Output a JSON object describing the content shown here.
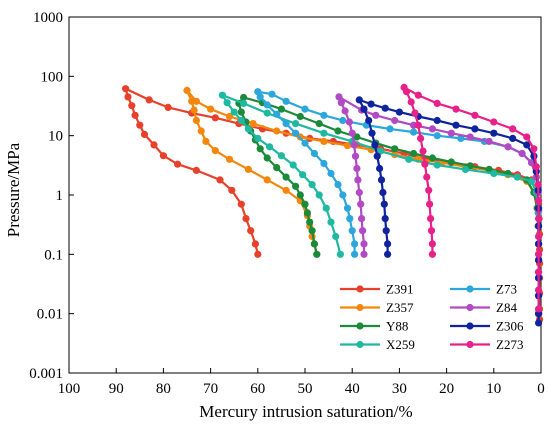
{
  "chart_data": {
    "type": "line",
    "xlabel": "Mercury intrusion saturation/%",
    "ylabel": "Pressure/MPa",
    "x_reversed": true,
    "xlim": [
      100,
      0
    ],
    "ylim": [
      0.001,
      1000
    ],
    "y_scale": "log",
    "x_ticks": [
      "100",
      "90",
      "80",
      "70",
      "60",
      "50",
      "40",
      "30",
      "20",
      "10",
      "0"
    ],
    "y_ticks": [
      "0.001",
      "0.01",
      "0.1",
      "1",
      "10",
      "100",
      "1000"
    ],
    "grid": false,
    "legend_position": "bottom-right",
    "series": [
      {
        "name": "Z391",
        "color": "#e8412b",
        "points": [
          [
            60,
            0.1
          ],
          [
            60.5,
            0.15
          ],
          [
            61.5,
            0.25
          ],
          [
            62.5,
            0.4
          ],
          [
            63.5,
            0.7
          ],
          [
            65.5,
            1.2
          ],
          [
            68,
            1.8
          ],
          [
            73,
            2.6
          ],
          [
            77,
            3.3
          ],
          [
            80,
            4.6
          ],
          [
            82,
            7
          ],
          [
            84,
            10.5
          ],
          [
            85,
            15
          ],
          [
            86,
            22
          ],
          [
            86.7,
            32
          ],
          [
            87.5,
            45
          ],
          [
            88,
            62
          ],
          [
            83,
            40
          ],
          [
            79,
            30
          ],
          [
            74,
            24
          ],
          [
            69,
            20
          ],
          [
            64,
            16
          ],
          [
            59,
            13
          ],
          [
            54,
            11
          ],
          [
            49,
            9
          ],
          [
            44,
            8
          ],
          [
            39,
            7
          ],
          [
            34,
            6
          ],
          [
            29,
            5
          ],
          [
            24,
            4
          ],
          [
            19,
            3.5
          ],
          [
            14,
            3
          ],
          [
            9,
            2.6
          ],
          [
            5,
            2.2
          ],
          [
            2,
            1.8
          ],
          [
            1,
            1.1
          ],
          [
            0.5,
            0.7
          ],
          [
            0.4,
            0.4
          ],
          [
            0.3,
            0.22
          ],
          [
            0.3,
            0.12
          ],
          [
            0.3,
            0.07
          ],
          [
            0.3,
            0.04
          ],
          [
            0.3,
            0.022
          ],
          [
            0.3,
            0.012
          ],
          [
            0.3,
            0.008
          ]
        ]
      },
      {
        "name": "Z357",
        "color": "#f4870b",
        "points": [
          [
            47.5,
            0.1
          ],
          [
            48,
            0.15
          ],
          [
            48.5,
            0.2
          ],
          [
            49,
            0.3
          ],
          [
            49.5,
            0.45
          ],
          [
            51,
            0.8
          ],
          [
            54,
            1.2
          ],
          [
            58,
            1.8
          ],
          [
            62,
            2.7
          ],
          [
            66,
            4
          ],
          [
            69,
            5.6
          ],
          [
            71,
            8
          ],
          [
            72,
            12
          ],
          [
            73,
            18
          ],
          [
            73.5,
            27
          ],
          [
            74,
            38
          ],
          [
            75,
            58
          ],
          [
            73,
            38
          ],
          [
            70,
            28
          ],
          [
            66,
            21
          ],
          [
            61,
            16
          ],
          [
            56,
            12
          ],
          [
            51,
            9.5
          ],
          [
            46,
            8
          ],
          [
            41,
            6.8
          ],
          [
            36,
            5.8
          ],
          [
            31,
            4.8
          ],
          [
            26,
            4
          ],
          [
            21,
            3.5
          ],
          [
            16,
            3
          ],
          [
            11,
            2.6
          ],
          [
            7,
            2.2
          ],
          [
            3,
            1.7
          ],
          [
            1.5,
            1.1
          ],
          [
            0.8,
            0.6
          ],
          [
            0.6,
            0.3
          ],
          [
            0.5,
            0.15
          ],
          [
            0.5,
            0.08
          ],
          [
            0.5,
            0.04
          ],
          [
            0.5,
            0.02
          ],
          [
            0.5,
            0.01
          ]
        ]
      },
      {
        "name": "Y88",
        "color": "#1b8a3a",
        "points": [
          [
            47.5,
            0.1
          ],
          [
            48,
            0.15
          ],
          [
            48.5,
            0.25
          ],
          [
            49,
            0.35
          ],
          [
            49.5,
            0.5
          ],
          [
            50,
            0.7
          ],
          [
            51,
            1
          ],
          [
            52,
            1.4
          ],
          [
            54,
            2
          ],
          [
            56,
            2.9
          ],
          [
            58,
            4.2
          ],
          [
            59.5,
            6
          ],
          [
            60.5,
            8.5
          ],
          [
            61.5,
            12
          ],
          [
            62.5,
            17
          ],
          [
            63.5,
            25
          ],
          [
            64,
            35
          ],
          [
            63,
            44
          ],
          [
            59,
            36
          ],
          [
            55,
            28
          ],
          [
            51,
            21
          ],
          [
            47,
            16
          ],
          [
            43,
            12
          ],
          [
            39,
            9.5
          ],
          [
            35,
            7.5
          ],
          [
            31,
            6
          ],
          [
            27,
            5
          ],
          [
            23,
            4.2
          ],
          [
            19,
            3.6
          ],
          [
            15,
            3.1
          ],
          [
            11,
            2.7
          ],
          [
            7,
            2.3
          ],
          [
            3,
            1.8
          ],
          [
            1.5,
            1.1
          ],
          [
            0.8,
            0.6
          ],
          [
            0.6,
            0.3
          ],
          [
            0.5,
            0.15
          ],
          [
            0.5,
            0.08
          ],
          [
            0.5,
            0.04
          ],
          [
            0.5,
            0.02
          ],
          [
            0.5,
            0.01
          ]
        ]
      },
      {
        "name": "X259",
        "color": "#1fb8a0",
        "points": [
          [
            42.5,
            0.1
          ],
          [
            43.5,
            0.2
          ],
          [
            44.5,
            0.35
          ],
          [
            45.5,
            0.6
          ],
          [
            47,
            1
          ],
          [
            48.5,
            1.5
          ],
          [
            50.5,
            2.2
          ],
          [
            52.5,
            3.2
          ],
          [
            55,
            4.6
          ],
          [
            57.5,
            6.5
          ],
          [
            60,
            9
          ],
          [
            62,
            13
          ],
          [
            63.5,
            18
          ],
          [
            65,
            25
          ],
          [
            66.5,
            36
          ],
          [
            67.5,
            48
          ],
          [
            63,
            35
          ],
          [
            58,
            24
          ],
          [
            52,
            16
          ],
          [
            46,
            11
          ],
          [
            40,
            8
          ],
          [
            34,
            5.5
          ],
          [
            28,
            4
          ],
          [
            22,
            3.2
          ],
          [
            16,
            2.7
          ],
          [
            10,
            2.3
          ],
          [
            5,
            2
          ],
          [
            2,
            1.7
          ],
          [
            1,
            1.1
          ],
          [
            0.6,
            0.5
          ],
          [
            0.5,
            0.2
          ],
          [
            0.5,
            0.1
          ],
          [
            0.5,
            0.05
          ],
          [
            0.5,
            0.025
          ],
          [
            0.5,
            0.012
          ]
        ]
      },
      {
        "name": "Z73",
        "color": "#2ba7dc",
        "points": [
          [
            39.5,
            0.1
          ],
          [
            39.5,
            0.15
          ],
          [
            40,
            0.25
          ],
          [
            40.5,
            0.4
          ],
          [
            41,
            0.6
          ],
          [
            42,
            1
          ],
          [
            43,
            1.5
          ],
          [
            44.5,
            2.3
          ],
          [
            46,
            3.4
          ],
          [
            48,
            5
          ],
          [
            50,
            7.5
          ],
          [
            52,
            11
          ],
          [
            54,
            16
          ],
          [
            56,
            23
          ],
          [
            58,
            33
          ],
          [
            59.5,
            45
          ],
          [
            60,
            55
          ],
          [
            57,
            50
          ],
          [
            54,
            38
          ],
          [
            50,
            28
          ],
          [
            46,
            22
          ],
          [
            42,
            18
          ],
          [
            37,
            15
          ],
          [
            32,
            13
          ],
          [
            27,
            11.5
          ],
          [
            22,
            10
          ],
          [
            17,
            9
          ],
          [
            12,
            8
          ],
          [
            7,
            6.5
          ],
          [
            4,
            5
          ],
          [
            2,
            3.5
          ],
          [
            1,
            2
          ],
          [
            0.6,
            1.1
          ],
          [
            0.5,
            0.55
          ],
          [
            0.5,
            0.3
          ],
          [
            0.5,
            0.15
          ],
          [
            0.5,
            0.08
          ],
          [
            0.5,
            0.04
          ],
          [
            0.5,
            0.02
          ],
          [
            0.5,
            0.01
          ]
        ]
      },
      {
        "name": "Z84",
        "color": "#b14ac3",
        "points": [
          [
            37.5,
            0.1
          ],
          [
            37.5,
            0.15
          ],
          [
            37.8,
            0.25
          ],
          [
            38,
            0.4
          ],
          [
            38.2,
            0.7
          ],
          [
            38.5,
            1.1
          ],
          [
            38.8,
            1.8
          ],
          [
            39,
            2.8
          ],
          [
            39.3,
            4.5
          ],
          [
            39.6,
            7
          ],
          [
            40,
            11
          ],
          [
            40.6,
            17
          ],
          [
            41.5,
            26
          ],
          [
            42.3,
            36
          ],
          [
            42.8,
            45
          ],
          [
            38,
            27
          ],
          [
            35,
            22
          ],
          [
            31,
            18
          ],
          [
            27,
            15
          ],
          [
            23,
            13
          ],
          [
            19,
            11
          ],
          [
            15,
            9.5
          ],
          [
            11,
            8
          ],
          [
            7,
            6.5
          ],
          [
            4,
            5
          ],
          [
            2,
            3.5
          ],
          [
            1,
            2
          ],
          [
            0.6,
            1.1
          ],
          [
            0.5,
            0.55
          ],
          [
            0.5,
            0.3
          ],
          [
            0.5,
            0.15
          ],
          [
            0.5,
            0.08
          ],
          [
            0.5,
            0.04
          ],
          [
            0.5,
            0.02
          ],
          [
            0.5,
            0.01
          ]
        ]
      },
      {
        "name": "Z306",
        "color": "#10239e",
        "points": [
          [
            32.5,
            0.1
          ],
          [
            32.5,
            0.15
          ],
          [
            32.8,
            0.25
          ],
          [
            33,
            0.4
          ],
          [
            33.2,
            0.7
          ],
          [
            33.5,
            1.1
          ],
          [
            33.8,
            1.8
          ],
          [
            34.2,
            2.8
          ],
          [
            34.7,
            4.5
          ],
          [
            35.2,
            7
          ],
          [
            35.8,
            11
          ],
          [
            36.5,
            18
          ],
          [
            37.5,
            28
          ],
          [
            38.5,
            40
          ],
          [
            36,
            34
          ],
          [
            33,
            29
          ],
          [
            30,
            25
          ],
          [
            26,
            21
          ],
          [
            22,
            18
          ],
          [
            18,
            15
          ],
          [
            14,
            13
          ],
          [
            10,
            11
          ],
          [
            6,
            9
          ],
          [
            3,
            7
          ],
          [
            1.5,
            4.5
          ],
          [
            1,
            2.5
          ],
          [
            0.6,
            1.2
          ],
          [
            0.5,
            0.6
          ],
          [
            0.5,
            0.3
          ],
          [
            0.5,
            0.15
          ],
          [
            0.5,
            0.08
          ],
          [
            0.5,
            0.04
          ],
          [
            0.5,
            0.02
          ],
          [
            0.5,
            0.01
          ],
          [
            0.5,
            0.007
          ]
        ]
      },
      {
        "name": "Z273",
        "color": "#e8208a",
        "points": [
          [
            23,
            0.1
          ],
          [
            23,
            0.15
          ],
          [
            23.2,
            0.25
          ],
          [
            23.4,
            0.4
          ],
          [
            23.6,
            0.7
          ],
          [
            23.8,
            1.2
          ],
          [
            24.2,
            2
          ],
          [
            24.6,
            3.3
          ],
          [
            25,
            5.5
          ],
          [
            25.5,
            9
          ],
          [
            26,
            15
          ],
          [
            26.7,
            24
          ],
          [
            27.5,
            37
          ],
          [
            28.5,
            55
          ],
          [
            29,
            65
          ],
          [
            26,
            48
          ],
          [
            22,
            35
          ],
          [
            18,
            28
          ],
          [
            14,
            22
          ],
          [
            10,
            17
          ],
          [
            6,
            13
          ],
          [
            3,
            9.5
          ],
          [
            1.5,
            6
          ],
          [
            1,
            3
          ],
          [
            0.6,
            1.5
          ],
          [
            0.5,
            0.8
          ],
          [
            0.5,
            0.4
          ],
          [
            0.5,
            0.2
          ],
          [
            0.5,
            0.1
          ],
          [
            0.5,
            0.05
          ],
          [
            0.5,
            0.025
          ],
          [
            0.5,
            0.012
          ]
        ]
      }
    ]
  }
}
